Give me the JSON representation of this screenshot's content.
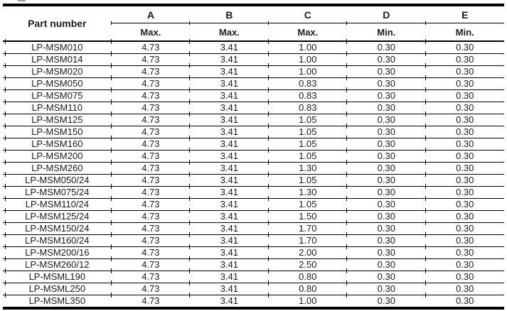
{
  "colors": {
    "background": "#ffffff",
    "table_border": "#000000",
    "text": "#1b1b20"
  },
  "table": {
    "header": {
      "part_number_label": "Part number",
      "columns": [
        {
          "letter": "A",
          "limit": "Max."
        },
        {
          "letter": "B",
          "limit": "Max."
        },
        {
          "letter": "C",
          "limit": "Max."
        },
        {
          "letter": "D",
          "limit": "Min."
        },
        {
          "letter": "E",
          "limit": "Min."
        }
      ]
    },
    "rows": [
      {
        "part": "LP-MSM010",
        "values": [
          "4.73",
          "3.41",
          "1.00",
          "0.30",
          "0.30"
        ]
      },
      {
        "part": "LP-MSM014",
        "values": [
          "4.73",
          "3.41",
          "1.00",
          "0.30",
          "0.30"
        ]
      },
      {
        "part": "LP-MSM020",
        "values": [
          "4.73",
          "3.41",
          "1.00",
          "0.30",
          "0.30"
        ]
      },
      {
        "part": "LP-MSM050",
        "values": [
          "4.73",
          "3.41",
          "0.83",
          "0.30",
          "0.30"
        ]
      },
      {
        "part": "LP-MSM075",
        "values": [
          "4.73",
          "3.41",
          "0.83",
          "0.30",
          "0.30"
        ]
      },
      {
        "part": "LP-MSM110",
        "values": [
          "4.73",
          "3.41",
          "0.83",
          "0.30",
          "0.30"
        ]
      },
      {
        "part": "LP-MSM125",
        "values": [
          "4.73",
          "3.41",
          "1.05",
          "0.30",
          "0.30"
        ]
      },
      {
        "part": "LP-MSM150",
        "values": [
          "4.73",
          "3.41",
          "1.05",
          "0.30",
          "0.30"
        ]
      },
      {
        "part": "LP-MSM160",
        "values": [
          "4.73",
          "3.41",
          "1.05",
          "0.30",
          "0.30"
        ]
      },
      {
        "part": "LP-MSM200",
        "values": [
          "4.73",
          "3.41",
          "1.05",
          "0.30",
          "0.30"
        ]
      },
      {
        "part": "LP-MSM260",
        "values": [
          "4.73",
          "3.41",
          "1.30",
          "0.30",
          "0.30"
        ]
      },
      {
        "part": "LP-MSM050/24",
        "values": [
          "4.73",
          "3.41",
          "1.05",
          "0.30",
          "0.30"
        ]
      },
      {
        "part": "LP-MSM075/24",
        "values": [
          "4.73",
          "3.41",
          "1.30",
          "0.30",
          "0.30"
        ]
      },
      {
        "part": "LP-MSM110/24",
        "values": [
          "4.73",
          "3.41",
          "1.05",
          "0.30",
          "0.30"
        ]
      },
      {
        "part": "LP-MSM125/24",
        "values": [
          "4.73",
          "3.41",
          "1.50",
          "0.30",
          "0.30"
        ]
      },
      {
        "part": "LP-MSM150/24",
        "values": [
          "4.73",
          "3.41",
          "1.70",
          "0.30",
          "0.30"
        ]
      },
      {
        "part": "LP-MSM160/24",
        "values": [
          "4.73",
          "3.41",
          "1.70",
          "0.30",
          "0.30"
        ]
      },
      {
        "part": "LP-MSM200/16",
        "values": [
          "4.73",
          "3.41",
          "2.00",
          "0.30",
          "0.30"
        ]
      },
      {
        "part": "LP-MSM260/12",
        "values": [
          "4.73",
          "3.41",
          "2.50",
          "0.30",
          "0.30"
        ]
      },
      {
        "part": "LP-MSML190",
        "values": [
          "4.73",
          "3.41",
          "0.80",
          "0.30",
          "0.30"
        ]
      },
      {
        "part": "LP-MSML250",
        "values": [
          "4.73",
          "3.41",
          "0.80",
          "0.30",
          "0.30"
        ]
      },
      {
        "part": "LP-MSML350",
        "values": [
          "4.73",
          "3.41",
          "1.00",
          "0.30",
          "0.30"
        ]
      }
    ]
  }
}
